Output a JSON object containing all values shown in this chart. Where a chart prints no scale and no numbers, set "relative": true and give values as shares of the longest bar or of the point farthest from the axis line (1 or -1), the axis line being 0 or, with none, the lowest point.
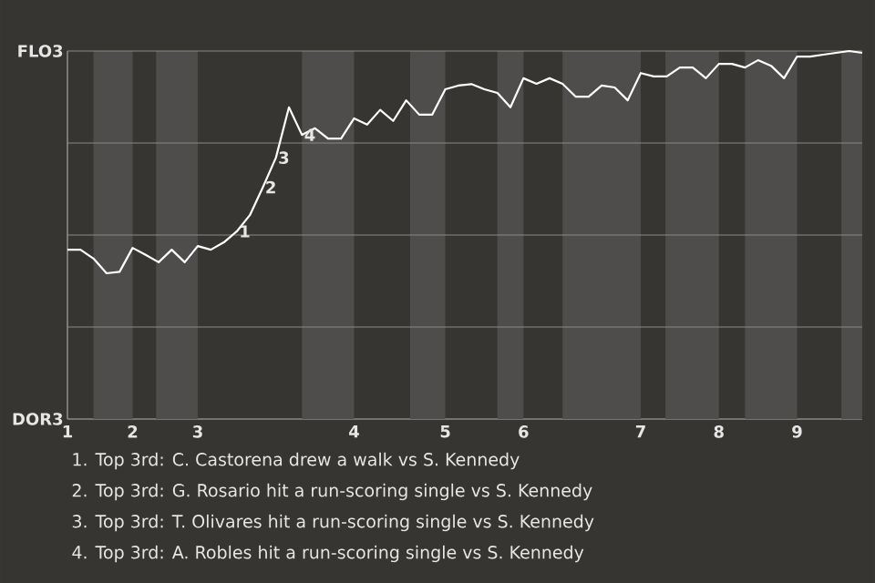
{
  "chart_data": {
    "type": "line",
    "relative": true,
    "categories": [
      "1",
      null,
      null,
      null,
      null,
      "2",
      null,
      null,
      null,
      null,
      "3",
      null,
      null,
      null,
      null,
      null,
      null,
      null,
      null,
      null,
      null,
      null,
      "4",
      null,
      null,
      null,
      null,
      null,
      null,
      "5",
      null,
      null,
      null,
      null,
      null,
      "6",
      null,
      null,
      null,
      null,
      null,
      null,
      null,
      null,
      "7",
      null,
      null,
      null,
      null,
      null,
      "8",
      null,
      null,
      null,
      null,
      null,
      "9",
      null,
      null,
      null,
      null,
      null
    ],
    "marker": "none",
    "line_style": "solid",
    "series": [
      {
        "color": "#ffffff",
        "values": [
          0.46,
          0.46,
          0.436,
          0.396,
          0.4,
          0.465,
          0.446,
          0.426,
          0.46,
          0.426,
          0.47,
          0.46,
          0.48,
          0.51,
          0.554,
          0.63,
          0.71,
          0.847,
          0.772,
          0.79,
          0.762,
          0.762,
          0.817,
          0.8,
          0.84,
          0.81,
          0.866,
          0.827,
          0.827,
          0.896,
          0.906,
          0.91,
          0.896,
          0.886,
          0.847,
          0.926,
          0.911,
          0.926,
          0.911,
          0.876,
          0.876,
          0.906,
          0.901,
          0.866,
          0.94,
          0.931,
          0.931,
          0.955,
          0.955,
          0.926,
          0.965,
          0.965,
          0.955,
          0.975,
          0.96,
          0.926,
          0.985,
          0.985,
          0.99,
          0.995,
          1.0,
          0.995
        ]
      }
    ],
    "grid": "y",
    "annotations": [
      "FLO3",
      "DOR3",
      {
        "text": "1",
        "y": 0.51
      },
      {
        "text": "2",
        "y": 0.63
      },
      {
        "text": "3",
        "y": 0.71
      },
      {
        "text": "4",
        "y": 0.772
      },
      "1. Top 3rd: C. Castorena drew a walk vs S. Kennedy",
      "2. Top 3rd: G. Rosario hit a run-scoring single vs S. Kennedy",
      "3. Top 3rd: T. Olivares hit a run-scoring single vs S. Kennedy",
      "4. Top 3rd: A. Robles hit a run-scoring single vs S. Kennedy"
    ]
  }
}
